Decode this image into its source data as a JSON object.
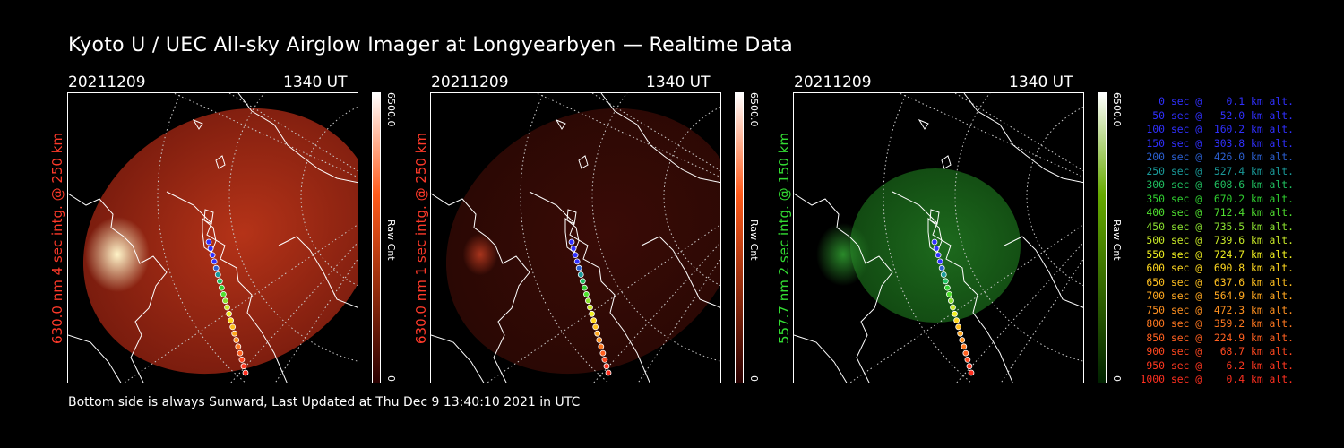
{
  "title": "Kyoto U / UEC All-sky Airglow Imager at Longyearbyen — Realtime Data",
  "panels": [
    {
      "date": "20211209",
      "time": "1340 UT",
      "side_label": "630.0 nm 4 sec intg. @ 250 km",
      "label_color": "#ff3a2a",
      "colorbar": {
        "max": "6500.0",
        "min": "0",
        "unit": "Raw Cnt",
        "top_color": "#ffffff",
        "mid_color": "#ff5a1a",
        "bottom_color": "#2a0000"
      },
      "glow": {
        "core": "#b53318",
        "edge": "#7a1c0e",
        "hot": "#fff4c8",
        "brightness": 1.0
      }
    },
    {
      "date": "20211209",
      "time": "1340 UT",
      "side_label": "630.0 nm 1 sec intg. @ 250 km",
      "label_color": "#ff3a2a",
      "colorbar": {
        "max": "6500.0",
        "min": "0",
        "unit": "Raw Cnt",
        "top_color": "#ffffff",
        "mid_color": "#ff5a1a",
        "bottom_color": "#2a0000"
      },
      "glow": {
        "core": "#3a0b06",
        "edge": "#2a0804",
        "hot": "#a8341c",
        "brightness": 0.45
      }
    },
    {
      "date": "20211209",
      "time": "1340 UT",
      "side_label": "557.7 nm 2 sec intg. @ 150 km",
      "label_color": "#33dd33",
      "colorbar": {
        "max": "6500.0",
        "min": "0",
        "unit": "Raw Cnt",
        "top_color": "#ffffff",
        "mid_color": "#66aa00",
        "bottom_color": "#002200"
      },
      "glow": {
        "core": "#1d6a1d",
        "edge": "#124a12",
        "hot": "#2a8a2a",
        "brightness": 0.8
      }
    }
  ],
  "footer": "Bottom side is always Sunward, Last Updated at Thu Dec  9 13:40:10 2021 in UTC",
  "legend": [
    {
      "text": "   0 sec @    0.1 km alt.",
      "color": "#3030ff"
    },
    {
      "text": "  50 sec @   52.0 km alt.",
      "color": "#3030ff"
    },
    {
      "text": " 100 sec @  160.2 km alt.",
      "color": "#3030ff"
    },
    {
      "text": " 150 sec @  303.8 km alt.",
      "color": "#3030ff"
    },
    {
      "text": " 200 sec @  426.0 km alt.",
      "color": "#2b5fd0"
    },
    {
      "text": " 250 sec @  527.4 km alt.",
      "color": "#1a9a9a"
    },
    {
      "text": " 300 sec @  608.6 km alt.",
      "color": "#20c060"
    },
    {
      "text": " 350 sec @  670.2 km alt.",
      "color": "#30d030"
    },
    {
      "text": " 400 sec @  712.4 km alt.",
      "color": "#50e030"
    },
    {
      "text": " 450 sec @  735.5 km alt.",
      "color": "#8ae030"
    },
    {
      "text": " 500 sec @  739.6 km alt.",
      "color": "#c8e828"
    },
    {
      "text": " 550 sec @  724.7 km alt.",
      "color": "#f0f020"
    },
    {
      "text": " 600 sec @  690.8 km alt.",
      "color": "#ffd820"
    },
    {
      "text": " 650 sec @  637.6 km alt.",
      "color": "#ffc020"
    },
    {
      "text": " 700 sec @  564.9 km alt.",
      "color": "#ffa820"
    },
    {
      "text": " 750 sec @  472.3 km alt.",
      "color": "#ff9020"
    },
    {
      "text": " 800 sec @  359.2 km alt.",
      "color": "#ff7820"
    },
    {
      "text": " 850 sec @  224.9 km alt.",
      "color": "#ff6020"
    },
    {
      "text": " 900 sec @   68.7 km alt.",
      "color": "#ff4820"
    },
    {
      "text": " 950 sec @    6.2 km alt.",
      "color": "#ff3820"
    },
    {
      "text": "1000 sec @    0.4 km alt.",
      "color": "#ff3020"
    }
  ]
}
